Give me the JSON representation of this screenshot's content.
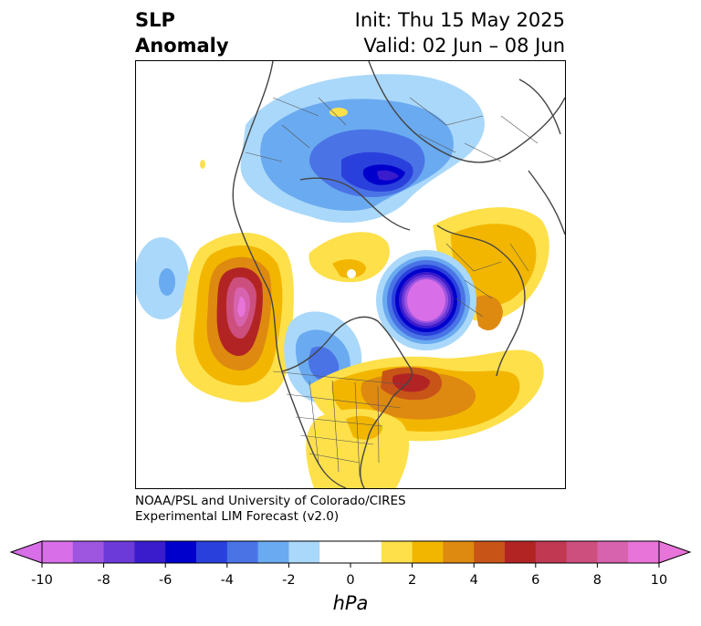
{
  "title": {
    "left_line1": "SLP",
    "left_line2": "Anomaly",
    "right_line1": "Init: Thu 15 May 2025",
    "right_line2": "Valid: 02 Jun – 08 Jun"
  },
  "credit": {
    "line1": "NOAA/PSL and University of Colorado/CIRES",
    "line2": "Experimental LIM Forecast (v2.0)"
  },
  "colorbar": {
    "unit": "hPa",
    "ticks": [
      "-10",
      "-8",
      "-6",
      "-4",
      "-2",
      "0",
      "2",
      "4",
      "6",
      "8",
      "10"
    ],
    "colors": [
      "#d86ee8",
      "#9e55e0",
      "#6c3ad8",
      "#3a1ccc",
      "#0000cc",
      "#2a40dc",
      "#4a74e6",
      "#6aaaf0",
      "#aad8fa",
      "#ffffff",
      "#ffffff",
      "#fde04a",
      "#f2b600",
      "#de8a10",
      "#c85418",
      "#b22424",
      "#c03852",
      "#cc4f7e",
      "#d762ad",
      "#e874da"
    ]
  },
  "map": {
    "projection": "north-polar-stereographic",
    "features": [
      {
        "name": "positive-anomaly-northeast-pacific",
        "peak_hpa": 10
      },
      {
        "name": "negative-anomaly-north-atlantic",
        "peak_hpa": -10
      },
      {
        "name": "positive-anomaly-western-atlantic",
        "peak_hpa": 6
      },
      {
        "name": "negative-anomaly-siberia-arctic",
        "peak_hpa": -6
      },
      {
        "name": "positive-anomaly-europe",
        "peak_hpa": 4
      },
      {
        "name": "negative-anomaly-hudson-bay",
        "peak_hpa": -4
      },
      {
        "name": "positive-anomaly-southeast-us",
        "peak_hpa": 2
      },
      {
        "name": "negative-anomaly-central-pacific",
        "peak_hpa": -4
      }
    ]
  }
}
